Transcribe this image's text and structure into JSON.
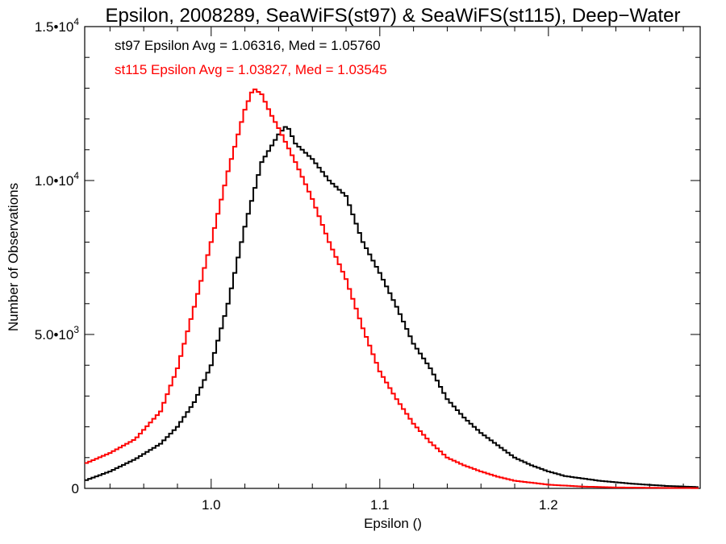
{
  "chart_data": {
    "type": "line",
    "title": "Epsilon, 2008289, SeaWiFS(st97) & SeaWiFS(st115), Deep−Water",
    "xlabel": "Epsilon ()",
    "ylabel": "Number of Observations",
    "xlim": [
      0.925,
      1.29
    ],
    "ylim": [
      0,
      15000
    ],
    "x_ticks": [
      {
        "value": 1.0,
        "label": "1.0"
      },
      {
        "value": 1.1,
        "label": "1.1"
      },
      {
        "value": 1.2,
        "label": "1.2"
      }
    ],
    "y_ticks": [
      {
        "value": 0,
        "mantissa": "0",
        "exp": ""
      },
      {
        "value": 5000,
        "mantissa": "5.0•10",
        "exp": "3"
      },
      {
        "value": 10000,
        "mantissa": "1.0•10",
        "exp": "4"
      },
      {
        "value": 15000,
        "mantissa": "1.5•10",
        "exp": "4"
      }
    ],
    "grid": false,
    "annotations": [
      {
        "text": "st97 Epsilon Avg = 1.06316, Med = 1.05760",
        "color": "#000000"
      },
      {
        "text": "st115 Epsilon Avg = 1.03827, Med = 1.03545",
        "color": "#ff0000"
      }
    ],
    "series": [
      {
        "color": "#000000",
        "points": [
          [
            0.925,
            250
          ],
          [
            0.94,
            550
          ],
          [
            0.955,
            950
          ],
          [
            0.97,
            1450
          ],
          [
            0.98,
            2000
          ],
          [
            0.99,
            2800
          ],
          [
            1.0,
            4000
          ],
          [
            1.01,
            6000
          ],
          [
            1.02,
            8500
          ],
          [
            1.03,
            10600
          ],
          [
            1.04,
            11500
          ],
          [
            1.045,
            11800
          ],
          [
            1.05,
            11200
          ],
          [
            1.06,
            10700
          ],
          [
            1.07,
            10000
          ],
          [
            1.08,
            9500
          ],
          [
            1.09,
            8000
          ],
          [
            1.1,
            7000
          ],
          [
            1.11,
            5900
          ],
          [
            1.12,
            4700
          ],
          [
            1.13,
            3900
          ],
          [
            1.14,
            2900
          ],
          [
            1.15,
            2300
          ],
          [
            1.16,
            1800
          ],
          [
            1.17,
            1400
          ],
          [
            1.18,
            1000
          ],
          [
            1.19,
            750
          ],
          [
            1.2,
            550
          ],
          [
            1.21,
            400
          ],
          [
            1.23,
            250
          ],
          [
            1.25,
            150
          ],
          [
            1.27,
            80
          ],
          [
            1.29,
            40
          ]
        ]
      },
      {
        "color": "#ff0000",
        "points": [
          [
            0.925,
            800
          ],
          [
            0.94,
            1150
          ],
          [
            0.955,
            1600
          ],
          [
            0.97,
            2500
          ],
          [
            0.98,
            3900
          ],
          [
            0.99,
            5900
          ],
          [
            1.0,
            8000
          ],
          [
            1.01,
            10300
          ],
          [
            1.02,
            12300
          ],
          [
            1.025,
            13000
          ],
          [
            1.03,
            12800
          ],
          [
            1.035,
            12200
          ],
          [
            1.04,
            11700
          ],
          [
            1.05,
            10600
          ],
          [
            1.06,
            9400
          ],
          [
            1.07,
            8000
          ],
          [
            1.08,
            6800
          ],
          [
            1.09,
            5200
          ],
          [
            1.1,
            3800
          ],
          [
            1.11,
            2900
          ],
          [
            1.12,
            2100
          ],
          [
            1.13,
            1500
          ],
          [
            1.14,
            1000
          ],
          [
            1.15,
            750
          ],
          [
            1.16,
            550
          ],
          [
            1.17,
            380
          ],
          [
            1.18,
            250
          ],
          [
            1.2,
            120
          ],
          [
            1.22,
            60
          ],
          [
            1.24,
            30
          ],
          [
            1.27,
            15
          ],
          [
            1.29,
            10
          ]
        ]
      }
    ]
  }
}
